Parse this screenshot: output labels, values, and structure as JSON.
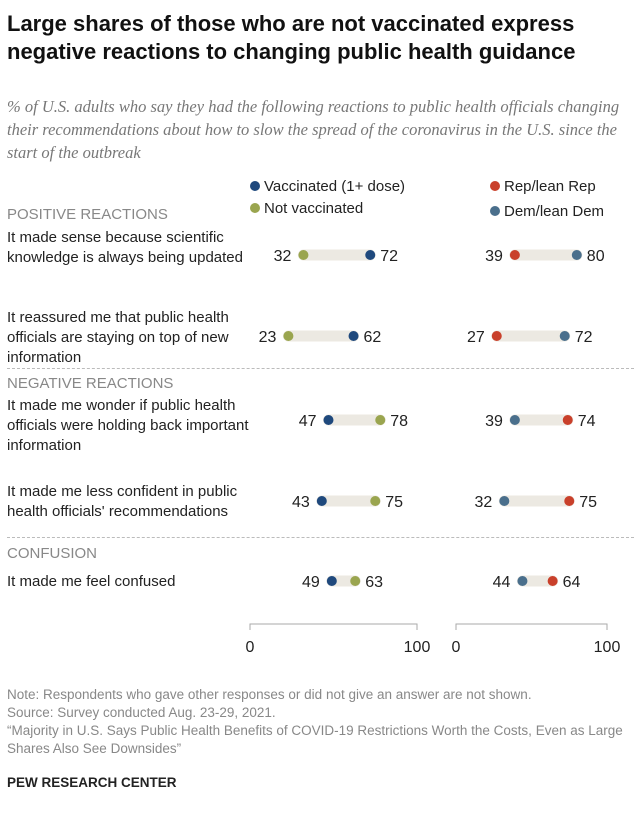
{
  "title": "Large shares of those who are not vaccinated express negative reactions to changing public health guidance",
  "subtitle": "% of U.S. adults who say they had the following reactions to public health officials changing their recommendations about how to slow the spread of the coronavirus in the U.S. since the start of the outbreak",
  "legend": {
    "vaccinated": "Vaccinated (1+ dose)",
    "not_vaccinated": "Not vaccinated",
    "rep": "Rep/lean Rep",
    "dem": "Dem/lean Dem"
  },
  "sections": [
    "POSITIVE REACTIONS",
    "NEGATIVE REACTIONS",
    "CONFUSION"
  ],
  "colors": {
    "vaccinated": "#1f497d",
    "not_vaccinated": "#9aa54f",
    "rep": "#c9402b",
    "dem": "#4a6f8c",
    "bar": "#ece9e2",
    "axis": "#aaaaaa"
  },
  "chart_data": {
    "type": "dot",
    "xlim": [
      0,
      100
    ],
    "tick_labels": [
      "0",
      "100"
    ],
    "categories": [
      "It made sense because scientific knowledge is always being updated",
      "It reassured me that public health officials are staying on top of new information",
      "It made me wonder if public health officials were holding back important information",
      "It made me less confident in public health officials' recommendations",
      "It made me feel confused"
    ],
    "panels": [
      {
        "series": [
          {
            "name": "Vaccinated (1+ dose)",
            "values": [
              72,
              62,
              47,
              43,
              49
            ]
          },
          {
            "name": "Not vaccinated",
            "values": [
              32,
              23,
              78,
              75,
              63
            ]
          }
        ]
      },
      {
        "series": [
          {
            "name": "Rep/lean Rep",
            "values": [
              39,
              27,
              74,
              75,
              64
            ]
          },
          {
            "name": "Dem/lean Dem",
            "values": [
              80,
              72,
              39,
              32,
              44
            ]
          }
        ]
      }
    ]
  },
  "note": "Note: Respondents who gave other responses or did not give an answer are not shown.",
  "source": "Source: Survey conducted Aug. 23-29, 2021.",
  "report": "“Majority in U.S. Says Public Health Benefits of COVID-19 Restrictions Worth the Costs, Even as Large Shares Also See Downsides”",
  "brand": "PEW RESEARCH CENTER"
}
